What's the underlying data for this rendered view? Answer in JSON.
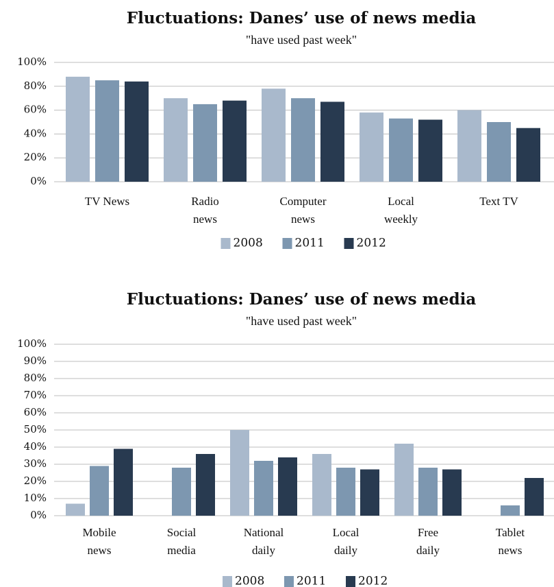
{
  "chart_data": [
    {
      "type": "bar",
      "title": "Fluctuations: Danes’ use of news media",
      "subtitle": "\"have used past week\"",
      "categories": [
        "TV News",
        "Radio news",
        "Computer news",
        "Local weekly",
        "Text TV"
      ],
      "series": [
        {
          "name": "2008",
          "color": "#a9b9cc",
          "values": [
            88,
            70,
            78,
            58,
            60
          ]
        },
        {
          "name": "2011",
          "color": "#7d97b0",
          "values": [
            85,
            65,
            70,
            53,
            50
          ]
        },
        {
          "name": "2012",
          "color": "#283a50",
          "values": [
            84,
            68,
            67,
            52,
            45
          ]
        }
      ],
      "ylim": [
        0,
        100
      ],
      "yticks": [
        {
          "value": 0,
          "label": "0%"
        },
        {
          "value": 20,
          "label": "20%"
        },
        {
          "value": 40,
          "label": "40%"
        },
        {
          "value": 60,
          "label": "60%"
        },
        {
          "value": 80,
          "label": "80%"
        },
        {
          "value": 100,
          "label": "100%"
        }
      ],
      "grid": true,
      "legend": "bottom"
    },
    {
      "type": "bar",
      "title": "Fluctuations: Danes’ use of news media",
      "subtitle": "\"have used past week\"",
      "categories": [
        "Mobile news",
        "Social media",
        "National daily",
        "Local daily",
        "Free daily",
        "Tablet news"
      ],
      "series": [
        {
          "name": "2008",
          "color": "#a9b9cc",
          "values": [
            7,
            null,
            50,
            36,
            42,
            null
          ]
        },
        {
          "name": "2011",
          "color": "#7d97b0",
          "values": [
            29,
            28,
            32,
            28,
            28,
            6
          ]
        },
        {
          "name": "2012",
          "color": "#283a50",
          "values": [
            39,
            36,
            34,
            27,
            27,
            22
          ]
        }
      ],
      "ylim": [
        0,
        100
      ],
      "yticks": [
        {
          "value": 0,
          "label": "0%"
        },
        {
          "value": 10,
          "label": "10%"
        },
        {
          "value": 20,
          "label": "20%"
        },
        {
          "value": 30,
          "label": "30%"
        },
        {
          "value": 40,
          "label": "40%"
        },
        {
          "value": 50,
          "label": "50%"
        },
        {
          "value": 60,
          "label": "60%"
        },
        {
          "value": 70,
          "label": "70%"
        },
        {
          "value": 80,
          "label": "80%"
        },
        {
          "value": 90,
          "label": "90%"
        },
        {
          "value": 100,
          "label": "100%"
        }
      ],
      "grid": true,
      "legend": "bottom"
    }
  ]
}
